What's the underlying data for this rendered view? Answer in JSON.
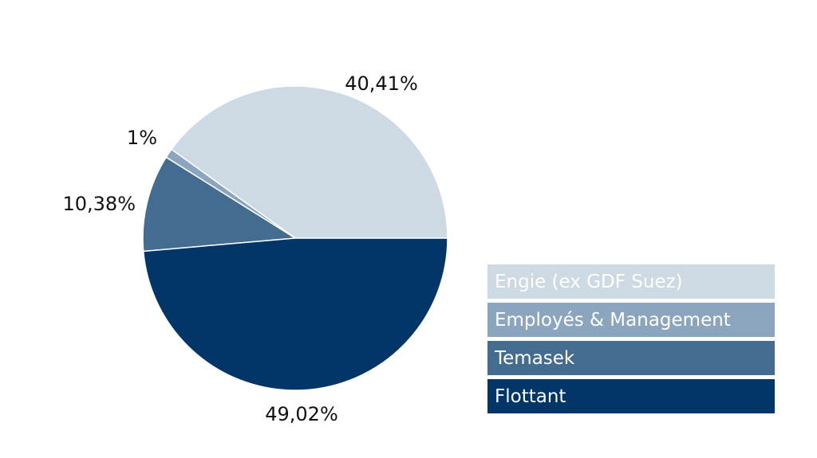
{
  "chart_data": {
    "type": "pie",
    "slices": [
      {
        "label": "Engie (ex GDF Suez)",
        "value": 40.41,
        "display": "40,41%",
        "color": "#cdd9e3"
      },
      {
        "label": "Employés & Management",
        "value": 1,
        "display": "1%",
        "color": "#8aa5bd"
      },
      {
        "label": "Temasek",
        "value": 10.38,
        "display": "10,38%",
        "color": "#446c91"
      },
      {
        "label": "Flottant",
        "value": 49.02,
        "display": "49,02%",
        "color": "#033668"
      }
    ],
    "start_angle_deg": 0,
    "direction": "counterclockwise",
    "legend_position": "bottom-right"
  }
}
